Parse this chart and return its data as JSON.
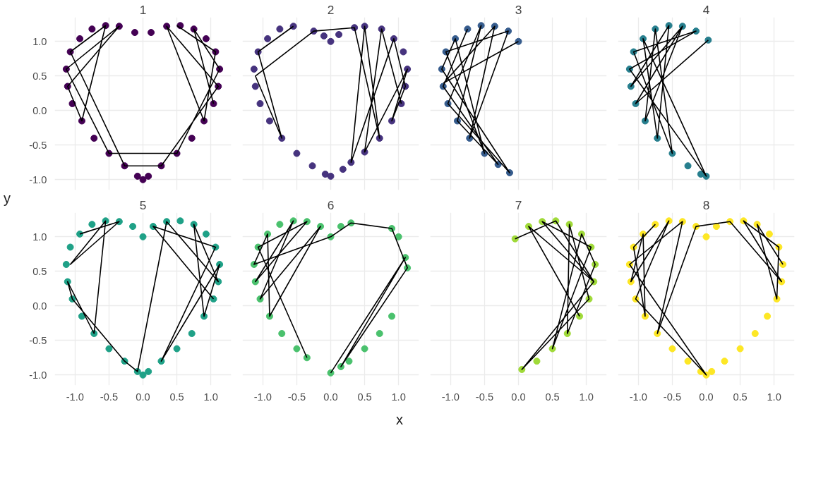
{
  "chart_data": [
    {
      "type": "scatter",
      "title": "1",
      "ylabel": "y",
      "xlim": [
        -1.3,
        1.3
      ],
      "ylim": [
        -1.15,
        1.35
      ],
      "xticks": [
        -1,
        -0.5,
        0,
        0.5,
        1
      ],
      "yticks": [
        {
          "value": -1,
          "label": "-1.0"
        },
        {
          "value": -0.5,
          "label": "-0.5"
        },
        {
          "value": 0,
          "label": "0.0"
        },
        {
          "value": 0.5,
          "label": "0.5"
        },
        {
          "value": 1,
          "label": "1.0"
        }
      ],
      "grid": true,
      "tick_labels": "y",
      "series": [
        {
          "marker": "circle",
          "color": "#440154",
          "x": [
            0.12,
            0.35,
            0.55,
            0.75,
            0.93,
            1.07,
            1.13,
            1.11,
            1.04,
            0.9,
            0.72,
            0.5,
            0.27,
            0.08,
            0,
            -0.08,
            -0.27,
            -0.5,
            -0.72,
            -0.9,
            -1.04,
            -1.11,
            -1.13,
            -1.07,
            -0.93,
            -0.75,
            -0.55,
            -0.35,
            -0.12
          ],
          "values": [
            1.13,
            1.22,
            1.23,
            1.18,
            1.04,
            0.85,
            0.6,
            0.35,
            0.1,
            -0.15,
            -0.4,
            -0.62,
            -0.8,
            -0.95,
            -1.0,
            -0.95,
            -0.8,
            -0.62,
            -0.4,
            -0.15,
            0.1,
            0.35,
            0.6,
            0.85,
            1.04,
            1.18,
            1.23,
            1.22,
            1.13
          ]
        },
        {
          "type": "line",
          "color": "#000000",
          "x": [
            0.5,
            1.07,
            0.9,
            0.35,
            1.11,
            0.27,
            -0.27,
            -1.07,
            -0.55,
            -0.9,
            -1.11,
            -0.35,
            -1.13,
            -0.5,
            0.5,
            1.13,
            0.75,
            1.04
          ],
          "values": [
            1.23,
            0.85,
            -0.15,
            1.22,
            0.35,
            -0.8,
            -0.8,
            0.85,
            1.23,
            -0.15,
            0.35,
            1.22,
            0.6,
            -0.62,
            -0.62,
            0.6,
            1.18,
            0.1
          ]
        }
      ]
    },
    {
      "type": "scatter",
      "title": "2",
      "xlim": [
        -1.3,
        1.3
      ],
      "ylim": [
        -1.15,
        1.35
      ],
      "xticks": [
        -1,
        -0.5,
        0,
        0.5,
        1
      ],
      "yticks": [
        -1,
        -0.5,
        0,
        0.5,
        1
      ],
      "grid": true,
      "tick_labels": false,
      "series": [
        {
          "marker": "circle",
          "color": "#46337e",
          "x": [
            -0.55,
            -0.75,
            -0.93,
            -1.07,
            -1.13,
            -1.11,
            -1.04,
            -0.9,
            -0.72,
            -0.5,
            -0.27,
            -0.08,
            0,
            -0.25,
            -0.1,
            0,
            0.12,
            0.35,
            0.5,
            0.75,
            0.93,
            1.07,
            1.13,
            1.1,
            1.04,
            0.9,
            0.72,
            0.5,
            0.3,
            0.18
          ],
          "values": [
            1.22,
            1.18,
            1.04,
            0.85,
            0.6,
            0.35,
            0.1,
            -0.15,
            -0.4,
            -0.62,
            -0.8,
            -0.92,
            -0.95,
            1.15,
            1.08,
            1.0,
            1.1,
            1.2,
            1.22,
            1.18,
            1.04,
            0.85,
            0.6,
            0.35,
            0.1,
            -0.15,
            -0.4,
            -0.6,
            -0.75,
            -0.85
          ]
        },
        {
          "type": "line",
          "color": "#000000",
          "x": [
            -0.55,
            -1.07,
            -0.72,
            -1.11,
            -0.25,
            0.35,
            0.72,
            0.5,
            0.3,
            0.93,
            1.1,
            0.9,
            1.13,
            0.5,
            0.75,
            1.04
          ],
          "values": [
            1.22,
            0.85,
            -0.4,
            0.5,
            1.15,
            1.2,
            -0.4,
            1.22,
            -0.75,
            1.04,
            0.35,
            -0.15,
            0.6,
            -0.6,
            1.18,
            0.1
          ]
        }
      ]
    },
    {
      "type": "scatter",
      "title": "3",
      "xlim": [
        -1.3,
        1.3
      ],
      "ylim": [
        -1.15,
        1.35
      ],
      "xticks": [
        -1,
        -0.5,
        0,
        0.5,
        1
      ],
      "yticks": [
        -1,
        -0.5,
        0,
        0.5,
        1
      ],
      "grid": true,
      "tick_labels": false,
      "series": [
        {
          "marker": "circle",
          "color": "#365c8d",
          "x": [
            0,
            -0.15,
            -0.35,
            -0.55,
            -0.75,
            -0.93,
            -1.07,
            -1.13,
            -1.11,
            -1.04,
            -0.9,
            -0.72,
            -0.5,
            -0.3,
            -0.13
          ],
          "values": [
            1.0,
            1.15,
            1.22,
            1.23,
            1.18,
            1.04,
            0.85,
            0.6,
            0.35,
            0.1,
            -0.15,
            -0.4,
            -0.62,
            -0.78,
            -0.9
          ]
        },
        {
          "type": "line",
          "color": "#000000",
          "x": [
            0,
            -1.1,
            -0.35,
            -0.72,
            -0.15,
            -1.07,
            -0.5,
            -0.93,
            -1.13,
            -0.13,
            -1.04,
            -0.55,
            -0.9,
            -0.3,
            -1.11,
            -0.75
          ],
          "values": [
            1.0,
            0.4,
            1.22,
            -0.4,
            1.15,
            0.85,
            -0.62,
            1.04,
            0.6,
            -0.9,
            0.1,
            1.23,
            -0.15,
            -0.78,
            0.35,
            1.18
          ]
        }
      ]
    },
    {
      "type": "scatter",
      "title": "4",
      "xlim": [
        -1.3,
        1.3
      ],
      "ylim": [
        -1.15,
        1.35
      ],
      "xticks": [
        -1,
        -0.5,
        0,
        0.5,
        1
      ],
      "yticks": [
        -1,
        -0.5,
        0,
        0.5,
        1
      ],
      "grid": true,
      "tick_labels": false,
      "series": [
        {
          "marker": "circle",
          "color": "#277f8e",
          "x": [
            0.03,
            -0.15,
            -0.35,
            -0.55,
            -0.75,
            -0.93,
            -1.07,
            -1.13,
            -1.11,
            -1.04,
            -0.9,
            -0.72,
            -0.5,
            -0.27,
            -0.08,
            0
          ],
          "values": [
            1.02,
            1.15,
            1.22,
            1.23,
            1.18,
            1.04,
            0.85,
            0.6,
            0.35,
            0.1,
            -0.15,
            -0.4,
            -0.62,
            -0.8,
            -0.92,
            -0.95
          ]
        },
        {
          "type": "line",
          "color": "#000000",
          "x": [
            0.03,
            -1.04,
            -0.35,
            -1.11,
            -0.55,
            -0.72,
            -0.93,
            0,
            -1.13,
            -0.15,
            -1.07,
            -0.5,
            -0.75,
            -0.9,
            -0.35,
            -1.11
          ],
          "values": [
            1.02,
            0.1,
            1.22,
            0.35,
            1.23,
            -0.4,
            1.04,
            -0.95,
            0.6,
            1.15,
            0.85,
            -0.62,
            1.18,
            -0.15,
            1.22,
            0.35
          ]
        }
      ]
    },
    {
      "type": "scatter",
      "title": "5",
      "xlim": [
        -1.3,
        1.3
      ],
      "ylim": [
        -1.15,
        1.35
      ],
      "xticks": [
        {
          "value": -1,
          "label": "-1.0"
        },
        {
          "value": -0.5,
          "label": "-0.5"
        },
        {
          "value": 0,
          "label": "0.0"
        },
        {
          "value": 0.5,
          "label": "0.5"
        },
        {
          "value": 1,
          "label": "1.0"
        }
      ],
      "yticks": [
        {
          "value": -1,
          "label": "-1.0"
        },
        {
          "value": -0.5,
          "label": "-0.5"
        },
        {
          "value": 0,
          "label": "0.0"
        },
        {
          "value": 0.5,
          "label": "0.5"
        },
        {
          "value": 1,
          "label": "1.0"
        }
      ],
      "grid": true,
      "series": [
        {
          "marker": "circle",
          "color": "#1fa187",
          "x": [
            0,
            0.15,
            0.35,
            0.55,
            0.75,
            0.93,
            1.07,
            1.13,
            1.11,
            1.04,
            0.9,
            0.72,
            0.5,
            0.27,
            0.08,
            0,
            -0.08,
            -0.27,
            -0.5,
            -0.72,
            -0.9,
            -1.04,
            -1.11,
            -1.13,
            -1.07,
            -0.93,
            -0.75,
            -0.55,
            -0.35,
            -0.15
          ],
          "values": [
            1.0,
            1.15,
            1.22,
            1.23,
            1.18,
            1.04,
            0.85,
            0.6,
            0.35,
            0.1,
            -0.15,
            -0.4,
            -0.62,
            -0.8,
            -0.95,
            -1.0,
            -0.95,
            -0.8,
            -0.62,
            -0.4,
            -0.15,
            0.1,
            0.35,
            0.6,
            0.85,
            1.04,
            1.18,
            1.23,
            1.22,
            1.15
          ]
        },
        {
          "type": "line",
          "color": "#000000",
          "x": [
            -0.93,
            -0.35,
            -1.07,
            -0.55,
            -0.72,
            -1.11,
            -1.04,
            -0.27,
            -0.08,
            0.35,
            1.11,
            0.75,
            0.9,
            1.13,
            0.27,
            1.07,
            0.15,
            1.04
          ],
          "values": [
            1.04,
            1.22,
            0.6,
            1.23,
            -0.4,
            0.35,
            0.1,
            -0.8,
            -0.95,
            1.22,
            0.35,
            1.18,
            -0.15,
            0.6,
            -0.8,
            0.85,
            1.15,
            0.1
          ]
        }
      ]
    },
    {
      "type": "scatter",
      "title": "6",
      "xlabel": "x",
      "xlim": [
        -1.3,
        1.3
      ],
      "ylim": [
        -1.15,
        1.35
      ],
      "xticks": [
        {
          "value": -1,
          "label": "-1.0"
        },
        {
          "value": -0.5,
          "label": "-0.5"
        },
        {
          "value": 0,
          "label": "0.0"
        },
        {
          "value": 0.5,
          "label": "0.5"
        },
        {
          "value": 1,
          "label": "1.0"
        }
      ],
      "yticks": [
        -1,
        -0.5,
        0,
        0.5,
        1
      ],
      "grid": true,
      "tick_labels": "x",
      "series": [
        {
          "marker": "circle",
          "color": "#4ac16d",
          "x": [
            0,
            -0.15,
            -0.35,
            -0.55,
            -0.75,
            -0.93,
            -1.07,
            -1.13,
            -1.11,
            -1.04,
            -0.9,
            -0.72,
            -0.5,
            -0.35,
            0.15,
            0.3,
            0.9,
            1.0,
            1.1,
            1.13,
            0.9,
            0.72,
            0.5,
            0.27,
            0.15,
            0
          ],
          "values": [
            1.0,
            1.15,
            1.22,
            1.23,
            1.18,
            1.04,
            0.85,
            0.6,
            0.35,
            0.1,
            -0.15,
            -0.4,
            -0.62,
            -0.75,
            1.15,
            1.2,
            1.12,
            1.0,
            0.7,
            0.55,
            -0.15,
            -0.4,
            -0.62,
            -0.8,
            -0.88,
            -0.97
          ]
        },
        {
          "type": "line",
          "color": "#000000",
          "x": [
            -0.35,
            -1.07,
            -0.35,
            -1.11,
            -0.55,
            -1.04,
            -0.15,
            -0.9,
            -0.93,
            -1.13,
            0,
            0.3,
            0.9,
            1.13,
            0.15,
            1.1,
            0
          ],
          "values": [
            -0.75,
            0.85,
            1.22,
            0.35,
            1.23,
            0.1,
            1.15,
            -0.15,
            1.04,
            0.6,
            1.0,
            1.2,
            1.12,
            0.55,
            -0.88,
            0.7,
            -0.97
          ]
        }
      ]
    },
    {
      "type": "scatter",
      "title": "7",
      "xlim": [
        -1.3,
        1.3
      ],
      "ylim": [
        -1.15,
        1.35
      ],
      "xticks": [
        {
          "value": -1,
          "label": "-1.0"
        },
        {
          "value": -0.5,
          "label": "-0.5"
        },
        {
          "value": 0,
          "label": "0.0"
        },
        {
          "value": 0.5,
          "label": "0.5"
        },
        {
          "value": 1,
          "label": "1.0"
        }
      ],
      "yticks": [
        -1,
        -0.5,
        0,
        0.5,
        1
      ],
      "grid": true,
      "tick_labels": "x",
      "series": [
        {
          "marker": "circle",
          "color": "#a0da39",
          "x": [
            -0.05,
            0.15,
            0.35,
            0.55,
            0.75,
            0.93,
            1.07,
            1.13,
            1.11,
            1.04,
            0.9,
            0.72,
            0.5,
            0.27,
            0.05
          ],
          "values": [
            0.97,
            1.15,
            1.22,
            1.23,
            1.18,
            1.04,
            0.85,
            0.6,
            0.35,
            0.1,
            -0.15,
            -0.4,
            -0.62,
            -0.8,
            -0.92
          ]
        },
        {
          "type": "line",
          "color": "#000000",
          "x": [
            -0.05,
            0.55,
            1.11,
            0.35,
            1.07,
            0.5,
            0.93,
            1.13,
            0.72,
            0.75,
            1.04,
            0.05,
            1.11,
            0.15,
            0.9
          ],
          "values": [
            0.97,
            1.23,
            0.35,
            1.22,
            0.85,
            -0.62,
            1.04,
            0.6,
            -0.4,
            1.18,
            0.1,
            -0.92,
            0.35,
            1.15,
            -0.15
          ]
        }
      ]
    },
    {
      "type": "scatter",
      "title": "8",
      "xlim": [
        -1.3,
        1.3
      ],
      "ylim": [
        -1.15,
        1.35
      ],
      "xticks": [
        {
          "value": -1,
          "label": "-1.0"
        },
        {
          "value": -0.5,
          "label": "-0.5"
        },
        {
          "value": 0,
          "label": "0.0"
        },
        {
          "value": 0.5,
          "label": "0.5"
        },
        {
          "value": 1,
          "label": "1.0"
        }
      ],
      "yticks": [
        -1,
        -0.5,
        0,
        0.5,
        1
      ],
      "grid": true,
      "tick_labels": "x",
      "series": [
        {
          "marker": "circle",
          "color": "#fde725",
          "x": [
            0,
            0.15,
            0.35,
            0.55,
            0.75,
            0.93,
            1.07,
            1.13,
            1.11,
            1.04,
            0.9,
            0.72,
            0.5,
            0.27,
            0.08,
            0,
            -0.08,
            -0.27,
            -0.5,
            -0.72,
            -0.9,
            -1.04,
            -1.11,
            -1.13,
            -1.07,
            -0.93,
            -0.75,
            -0.55,
            -0.35,
            -0.15
          ],
          "values": [
            1.0,
            1.15,
            1.22,
            1.23,
            1.18,
            1.04,
            0.85,
            0.6,
            0.35,
            0.1,
            -0.15,
            -0.4,
            -0.62,
            -0.8,
            -0.95,
            -1.0,
            -0.95,
            -0.8,
            -0.62,
            -0.4,
            -0.15,
            0.1,
            0.35,
            0.6,
            0.85,
            1.04,
            1.18,
            1.23,
            1.22,
            1.15
          ]
        },
        {
          "type": "line",
          "color": "#000000",
          "x": [
            -0.75,
            -1.07,
            -0.9,
            -0.93,
            -1.11,
            -0.55,
            -1.04,
            0,
            -1.13,
            -0.35,
            -0.72,
            -0.15,
            0.35,
            1.11,
            0.55,
            1.07,
            1.04,
            0.75,
            1.13
          ],
          "values": [
            1.18,
            0.85,
            -0.15,
            1.04,
            0.35,
            1.23,
            0.1,
            -1.0,
            0.6,
            1.22,
            -0.4,
            1.15,
            1.22,
            0.35,
            1.23,
            0.85,
            0.1,
            1.18,
            0.6
          ]
        }
      ]
    }
  ]
}
